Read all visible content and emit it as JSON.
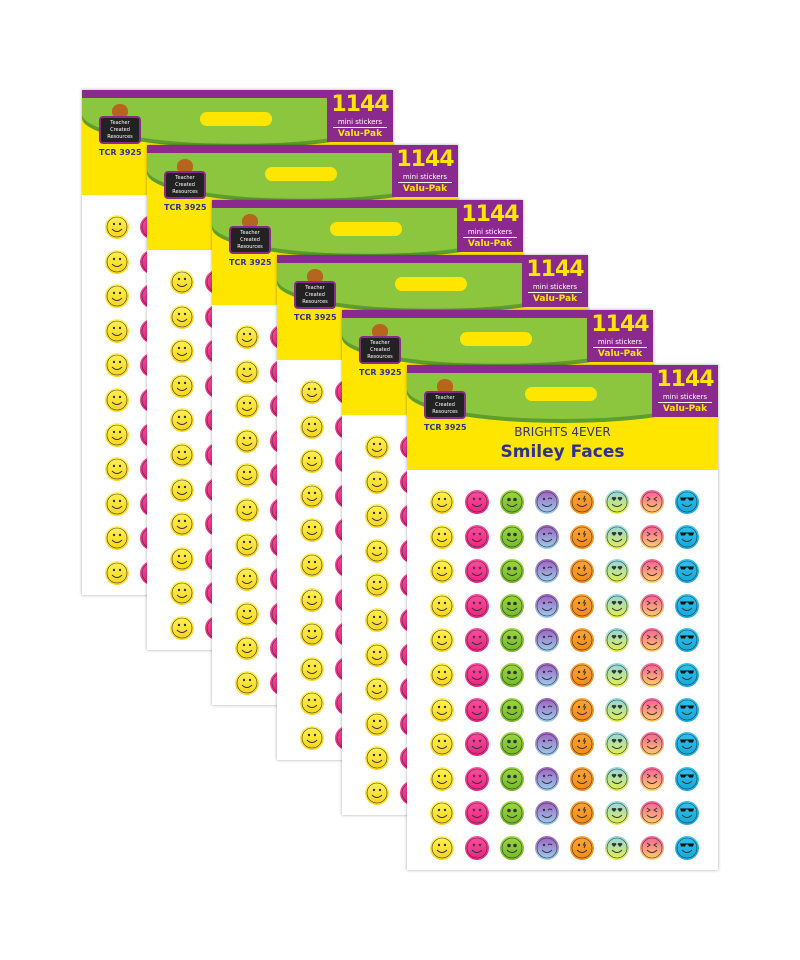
{
  "product": {
    "brand_lines": [
      "Teacher",
      "Created",
      "Resources"
    ],
    "code": "TCR 3925",
    "count": "1144",
    "count_label": "mini stickers",
    "pack_type": "Valu-Pak",
    "series": "BRIGHTS 4EVER",
    "title": "Smiley Faces"
  },
  "pack_count": 6,
  "stickers": {
    "rows": 11,
    "columns": [
      {
        "face": "smile",
        "colors": [
          "#fff35a",
          "#f7d417"
        ]
      },
      {
        "face": "stars",
        "colors": [
          "#ff4fa0",
          "#e8247f"
        ]
      },
      {
        "face": "dots",
        "colors": [
          "#9bd83f",
          "#74b82a"
        ]
      },
      {
        "face": "wink",
        "colors": [
          "#a05fc0",
          "#9ad2ef"
        ]
      },
      {
        "face": "bolt",
        "colors": [
          "#ffa53a",
          "#f58a12"
        ]
      },
      {
        "face": "hearts",
        "colors": [
          "#8fd6e8",
          "#e6ee4a"
        ]
      },
      {
        "face": "squint",
        "colors": [
          "#ff5c9a",
          "#ffd36a"
        ]
      },
      {
        "face": "shades",
        "colors": [
          "#2fc4ee",
          "#14a8dc"
        ]
      }
    ]
  }
}
